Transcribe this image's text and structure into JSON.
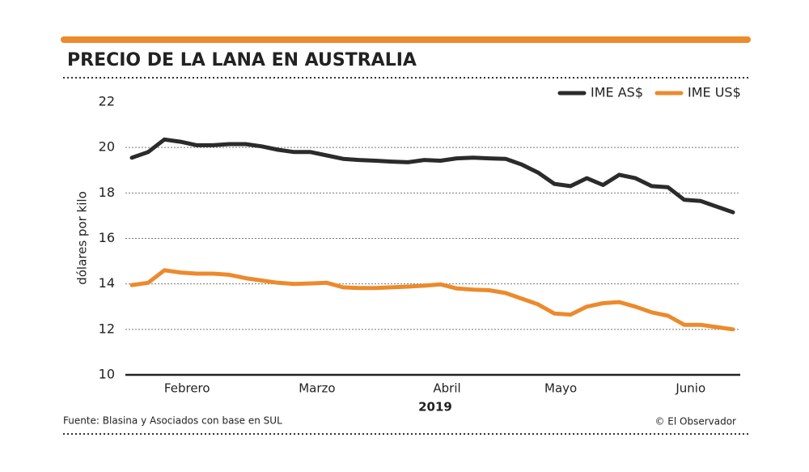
{
  "chart_data": {
    "type": "line",
    "title": "PRECIO DE LA LANA EN AUSTRALIA",
    "y_label": "dólares por kilo",
    "x_label": "2019",
    "source": "Fuente: Blasina y Asociados con base en SUL",
    "credit": "© El Observador",
    "categories": [
      null,
      null,
      null,
      "Febrero",
      null,
      null,
      null,
      null,
      null,
      null,
      null,
      "Marzo",
      null,
      null,
      null,
      null,
      null,
      null,
      null,
      "Abril",
      null,
      null,
      null,
      null,
      null,
      null,
      "Mayo",
      null,
      null,
      null,
      null,
      null,
      null,
      null,
      "Junio",
      null,
      null,
      null
    ],
    "series": [
      {
        "name": "IME AS$",
        "color": "#2b2b2b",
        "values": [
          19.55,
          19.8,
          20.35,
          20.25,
          20.1,
          20.1,
          20.15,
          20.15,
          20.05,
          19.9,
          19.8,
          19.8,
          19.65,
          19.5,
          19.45,
          19.42,
          19.38,
          19.35,
          19.45,
          19.42,
          19.52,
          19.55,
          19.52,
          19.5,
          19.25,
          18.9,
          18.4,
          18.3,
          18.65,
          18.35,
          18.8,
          18.65,
          18.3,
          18.25,
          17.7,
          17.65,
          17.4,
          17.15
        ]
      },
      {
        "name": "IME US$",
        "color": "#ec8a2c",
        "values": [
          13.95,
          14.05,
          14.6,
          14.5,
          14.45,
          14.45,
          14.4,
          14.25,
          14.15,
          14.05,
          14.0,
          14.02,
          14.05,
          13.85,
          13.82,
          13.82,
          13.85,
          13.88,
          13.92,
          13.98,
          13.8,
          13.75,
          13.72,
          13.6,
          13.35,
          13.1,
          12.7,
          12.65,
          13.0,
          13.15,
          13.2,
          13.0,
          12.75,
          12.6,
          12.2,
          12.2,
          12.1,
          12.0
        ]
      }
    ],
    "ylim": [
      10,
      22
    ],
    "yticks": [
      10,
      12,
      14,
      16,
      18,
      20,
      22
    ],
    "grid": true,
    "legend": "top-right"
  }
}
